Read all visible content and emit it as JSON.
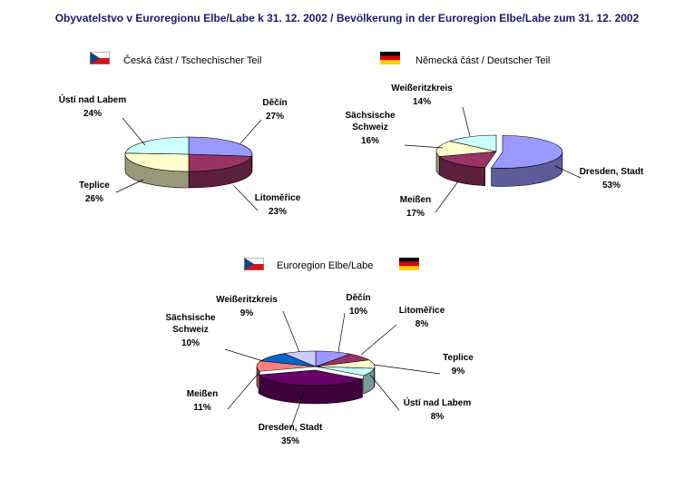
{
  "title": "Obyvatelstvo v  Euroregionu Elbe/Labe k 31. 12. 2002  /  Bevölkerung in der Euroregion Elbe/Labe zum 31. 12. 2002",
  "legends": {
    "czech": "Česká část / Tschechischer Teil",
    "german": "Německá část / Deutscher Teil",
    "euroregion": "Euroregion Elbe/Labe"
  },
  "flags": {
    "czech": "czech-flag",
    "german": "german-flag"
  },
  "colors": {
    "periwinkle": "#9999ff",
    "plum": "#993366",
    "cream": "#ffffcc",
    "lightcyan": "#ccffff",
    "darkpurple": "#660066",
    "salmon": "#ff8080",
    "blue": "#0066cc",
    "lavender": "#ccccff"
  },
  "chart_data": [
    {
      "type": "pie",
      "title": "Česká část / Tschechischer Teil",
      "slices": [
        {
          "label": "Děčín",
          "value": 27,
          "pct": "27%",
          "color": "#9999ff"
        },
        {
          "label": "Litoměřice",
          "value": 23,
          "pct": "23%",
          "color": "#993366"
        },
        {
          "label": "Teplice",
          "value": 26,
          "pct": "26%",
          "color": "#ffffcc"
        },
        {
          "label": "Ústí nad Labem",
          "value": 24,
          "pct": "24%",
          "color": "#ccffff"
        }
      ]
    },
    {
      "type": "pie",
      "title": "Německá část / Deutscher Teil",
      "slices": [
        {
          "label": "Dresden, Stadt",
          "value": 53,
          "pct": "53%",
          "color": "#9999ff"
        },
        {
          "label": "Meißen",
          "value": 17,
          "pct": "17%",
          "color": "#993366"
        },
        {
          "label": "Sächsische Schweiz",
          "value": 16,
          "pct": "16%",
          "color": "#ffffcc"
        },
        {
          "label": "Weißeritzkreis",
          "value": 14,
          "pct": "14%",
          "color": "#ccffff"
        }
      ]
    },
    {
      "type": "pie",
      "title": "Euroregion Elbe/Labe",
      "slices": [
        {
          "label": "Děčín",
          "value": 10,
          "pct": "10%",
          "color": "#9999ff"
        },
        {
          "label": "Litoměřice",
          "value": 8,
          "pct": "8%",
          "color": "#993366"
        },
        {
          "label": "Teplice",
          "value": 9,
          "pct": "9%",
          "color": "#ffffcc"
        },
        {
          "label": "Ústí nad Labem",
          "value": 8,
          "pct": "8%",
          "color": "#ccffff"
        },
        {
          "label": "Dresden, Stadt",
          "value": 35,
          "pct": "35%",
          "color": "#660066"
        },
        {
          "label": "Meißen",
          "value": 11,
          "pct": "11%",
          "color": "#ff8080"
        },
        {
          "label": "Sächsische Schweiz",
          "value": 10,
          "pct": "10%",
          "color": "#0066cc"
        },
        {
          "label": "Weißeritzkreis",
          "value": 9,
          "pct": "9%",
          "color": "#ccccff"
        }
      ]
    }
  ]
}
